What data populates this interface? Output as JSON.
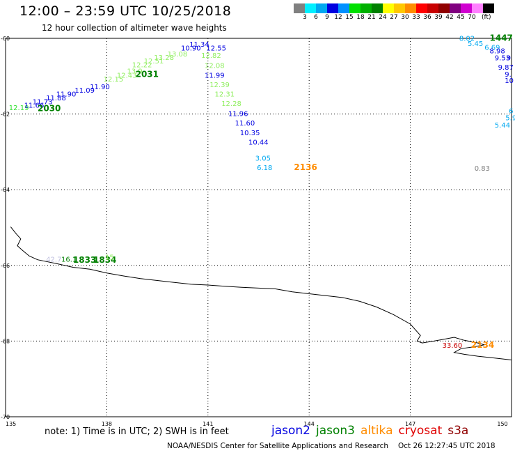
{
  "header": {
    "title": "12:00 – 23:59 UTC 10/25/2018",
    "subtitle": "12 hour collection of altimeter wave heights"
  },
  "legend": {
    "colors": [
      "#808080",
      "#00f0ff",
      "#00a8f0",
      "#0000e0",
      "#0090ff",
      "#00e000",
      "#00b000",
      "#008000",
      "#ffff00",
      "#ffc800",
      "#ff8c00",
      "#ff0000",
      "#c80000",
      "#900000",
      "#800080",
      "#d000d0",
      "#ff80ff",
      "#000000"
    ],
    "ticks": [
      "3",
      "6",
      "9",
      "12",
      "15",
      "18",
      "21",
      "24",
      "27",
      "30",
      "33",
      "36",
      "39",
      "42",
      "45",
      "70"
    ],
    "unit": "(ft)"
  },
  "map": {
    "lon_ticks": [
      {
        "label": "135",
        "lon": 135
      },
      {
        "label": "138",
        "lon": 138
      },
      {
        "label": "141",
        "lon": 141
      },
      {
        "label": "144",
        "lon": 144
      },
      {
        "label": "147",
        "lon": 147
      },
      {
        "label": "150",
        "lon": 150
      }
    ],
    "lat_ticks": [
      {
        "label": "-60",
        "lat": -60
      },
      {
        "label": "-62",
        "lat": -62
      },
      {
        "label": "-64",
        "lat": -64
      },
      {
        "label": "-66",
        "lat": -66
      },
      {
        "label": "-68",
        "lat": -68
      },
      {
        "label": "-70",
        "lat": -70
      }
    ],
    "coastline": [
      [
        135.15,
        -64.98
      ],
      [
        135.3,
        -65.15
      ],
      [
        135.45,
        -65.3
      ],
      [
        135.35,
        -65.48
      ],
      [
        135.5,
        -65.6
      ],
      [
        135.7,
        -65.75
      ],
      [
        135.95,
        -65.85
      ],
      [
        136.5,
        -65.95
      ],
      [
        137.0,
        -66.05
      ],
      [
        137.5,
        -66.1
      ],
      [
        138.0,
        -66.2
      ],
      [
        138.5,
        -66.28
      ],
      [
        139.0,
        -66.35
      ],
      [
        139.5,
        -66.4
      ],
      [
        140.0,
        -66.45
      ],
      [
        140.5,
        -66.5
      ],
      [
        141.0,
        -66.52
      ],
      [
        141.5,
        -66.55
      ],
      [
        142.0,
        -66.58
      ],
      [
        142.5,
        -66.6
      ],
      [
        143.0,
        -66.62
      ],
      [
        143.5,
        -66.7
      ],
      [
        144.0,
        -66.75
      ],
      [
        144.5,
        -66.8
      ],
      [
        145.0,
        -66.85
      ],
      [
        145.5,
        -66.95
      ],
      [
        146.0,
        -67.1
      ],
      [
        146.5,
        -67.3
      ],
      [
        147.0,
        -67.55
      ],
      [
        147.3,
        -67.85
      ],
      [
        147.2,
        -68.0
      ],
      [
        147.35,
        -68.05
      ],
      [
        147.7,
        -68.0
      ],
      [
        148.0,
        -67.95
      ],
      [
        148.3,
        -67.9
      ],
      [
        148.6,
        -67.98
      ],
      [
        149.0,
        -68.05
      ],
      [
        149.2,
        -68.1
      ],
      [
        148.9,
        -68.15
      ],
      [
        148.5,
        -68.2
      ],
      [
        148.3,
        -68.3
      ],
      [
        148.6,
        -68.35
      ],
      [
        149.0,
        -68.4
      ],
      [
        149.5,
        -68.45
      ],
      [
        150.0,
        -68.5
      ]
    ],
    "labels": [
      {
        "text": "12.19",
        "lon": 135.1,
        "lat": -61.9,
        "color": "#30e030"
      },
      {
        "text": "11.66",
        "lon": 135.55,
        "lat": -61.83,
        "color": "#0000e0"
      },
      {
        "text": "11.73",
        "lon": 135.8,
        "lat": -61.74,
        "color": "#0000e0"
      },
      {
        "text": "2030",
        "lon": 135.95,
        "lat": -61.92,
        "color": "#008000",
        "bold": true
      },
      {
        "text": "11.88",
        "lon": 136.2,
        "lat": -61.64,
        "color": "#0000e0"
      },
      {
        "text": "11.90",
        "lon": 136.5,
        "lat": -61.54,
        "color": "#0000e0"
      },
      {
        "text": "11.09",
        "lon": 137.05,
        "lat": -61.44,
        "color": "#0000e0"
      },
      {
        "text": "11.90",
        "lon": 137.5,
        "lat": -61.34,
        "color": "#0000e0"
      },
      {
        "text": "12.15",
        "lon": 137.9,
        "lat": -61.14,
        "color": "#90ee60"
      },
      {
        "text": "12.43",
        "lon": 138.3,
        "lat": -61.04,
        "color": "#90ee60"
      },
      {
        "text": "13.9",
        "lon": 138.6,
        "lat": -60.93,
        "color": "#90ee60"
      },
      {
        "text": "12.22",
        "lon": 138.75,
        "lat": -60.76,
        "color": "#90ee60"
      },
      {
        "text": "2031",
        "lon": 138.85,
        "lat": -61.02,
        "color": "#008000",
        "bold": true
      },
      {
        "text": "12.51",
        "lon": 139.1,
        "lat": -60.66,
        "color": "#90ee60"
      },
      {
        "text": "13.28",
        "lon": 139.4,
        "lat": -60.57,
        "color": "#90ee60"
      },
      {
        "text": "13.08",
        "lon": 139.8,
        "lat": -60.48,
        "color": "#90ee60"
      },
      {
        "text": "11.34",
        "lon": 140.45,
        "lat": -60.22,
        "color": "#0000e0"
      },
      {
        "text": "10.90",
        "lon": 140.2,
        "lat": -60.32,
        "color": "#0000e0"
      },
      {
        "text": "12.55",
        "lon": 140.95,
        "lat": -60.32,
        "color": "#0000e0"
      },
      {
        "text": "12.82",
        "lon": 140.8,
        "lat": -60.52,
        "color": "#90ee60"
      },
      {
        "text": "12.08",
        "lon": 140.9,
        "lat": -60.78,
        "color": "#90ee60"
      },
      {
        "text": "11.99",
        "lon": 140.9,
        "lat": -61.04,
        "color": "#0000e0"
      },
      {
        "text": "12.39",
        "lon": 141.05,
        "lat": -61.29,
        "color": "#90ee60"
      },
      {
        "text": "12.31",
        "lon": 141.2,
        "lat": -61.54,
        "color": "#90ee60"
      },
      {
        "text": "12.28",
        "lon": 141.4,
        "lat": -61.79,
        "color": "#90ee60"
      },
      {
        "text": "11.96",
        "lon": 141.6,
        "lat": -62.05,
        "color": "#0000e0"
      },
      {
        "text": "11.60",
        "lon": 141.8,
        "lat": -62.3,
        "color": "#0000e0"
      },
      {
        "text": "10.35",
        "lon": 141.95,
        "lat": -62.56,
        "color": "#0000e0"
      },
      {
        "text": "10.44",
        "lon": 142.2,
        "lat": -62.81,
        "color": "#0000e0"
      },
      {
        "text": "3.05",
        "lon": 142.4,
        "lat": -63.23,
        "color": "#00a8f0"
      },
      {
        "text": "6.18",
        "lon": 142.45,
        "lat": -63.48,
        "color": "#00a8f0"
      },
      {
        "text": "2136",
        "lon": 143.55,
        "lat": -63.48,
        "color": "#ff8c00",
        "bold": true
      },
      {
        "text": "8.02",
        "lon": 148.45,
        "lat": -60.06,
        "color": "#00a8f0"
      },
      {
        "text": "1447",
        "lon": 149.35,
        "lat": -60.06,
        "color": "#008000",
        "bold": true
      },
      {
        "text": "5.45",
        "lon": 148.7,
        "lat": -60.2,
        "color": "#00a8f0"
      },
      {
        "text": "6.69",
        "lon": 149.2,
        "lat": -60.3,
        "color": "#00a8f0"
      },
      {
        "text": "8.98",
        "lon": 149.35,
        "lat": -60.4,
        "color": "#0000e0"
      },
      {
        "text": "9.53",
        "lon": 149.5,
        "lat": -60.58,
        "color": "#0000e0"
      },
      {
        "text": "9",
        "lon": 149.85,
        "lat": -60.58,
        "color": "#0000e0"
      },
      {
        "text": "9.87",
        "lon": 149.6,
        "lat": -60.83,
        "color": "#0000e0"
      },
      {
        "text": "9.",
        "lon": 149.8,
        "lat": -61.01,
        "color": "#0000e0"
      },
      {
        "text": "10",
        "lon": 149.8,
        "lat": -61.18,
        "color": "#0000e0"
      },
      {
        "text": "6",
        "lon": 149.92,
        "lat": -61.98,
        "color": "#00a8f0"
      },
      {
        "text": "5.9",
        "lon": 149.82,
        "lat": -62.16,
        "color": "#00a8f0"
      },
      {
        "text": "5.44",
        "lon": 149.5,
        "lat": -62.36,
        "color": "#00a8f0"
      },
      {
        "text": "0.83",
        "lon": 148.9,
        "lat": -63.5,
        "color": "#808080"
      },
      {
        "text": "42.7",
        "lon": 136.2,
        "lat": -65.9,
        "color": "#c0c0e0"
      },
      {
        "text": "16.1",
        "lon": 136.65,
        "lat": -65.9,
        "color": "#008000"
      },
      {
        "text": "1833",
        "lon": 137.0,
        "lat": -65.93,
        "color": "#008000",
        "bold": true
      },
      {
        "text": "1834",
        "lon": 137.6,
        "lat": -65.93,
        "color": "#008000",
        "bold": true
      },
      {
        "text": "15",
        "lon": 137.95,
        "lat": -65.85,
        "color": "#90ee60"
      },
      {
        "text": "33.60",
        "lon": 147.95,
        "lat": -68.18,
        "color": "#c80000"
      },
      {
        "text": "2134",
        "lon": 148.8,
        "lat": -68.18,
        "color": "#ff8c00",
        "bold": true
      }
    ]
  },
  "footer": {
    "note": "note: 1) Time is in UTC; 2) SWH is in feet",
    "satellites": [
      {
        "name": "jason2",
        "color": "#0000e0"
      },
      {
        "name": "jason3",
        "color": "#008000"
      },
      {
        "name": "altika",
        "color": "#ff8c00"
      },
      {
        "name": "cryosat",
        "color": "#e00000"
      },
      {
        "name": "s3a",
        "color": "#900000"
      }
    ],
    "credit_org": "NOAA/NESDIS Center for Satellite Applications and Research",
    "credit_time": "Oct 26 12:27:45 UTC 2018"
  }
}
